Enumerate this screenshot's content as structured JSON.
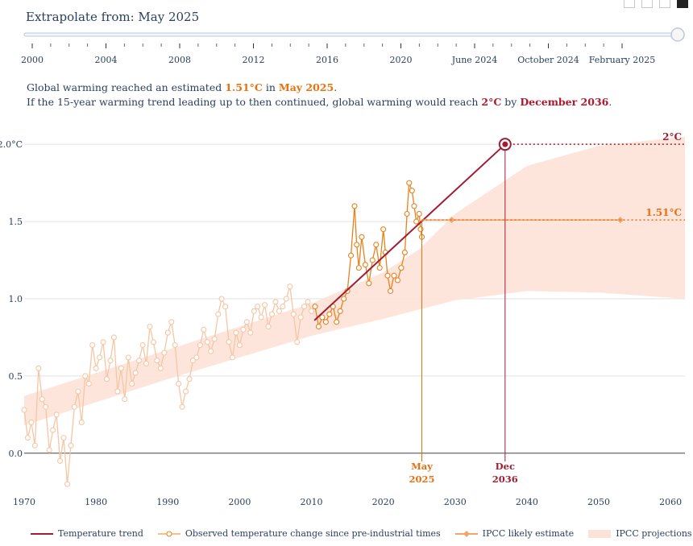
{
  "slider": {
    "label": "Extrapolate from: May 2025",
    "ticks": [
      "2000",
      "2004",
      "2008",
      "2012",
      "2016",
      "2020",
      "June 2024",
      "October 2024",
      "February 2025"
    ],
    "value_fraction": 1.0
  },
  "caption": {
    "line1_prefix": "Global warming reached an estimated ",
    "line1_temp": "1.51°C",
    "line1_mid": " in ",
    "line1_date": "May 2025",
    "line1_end": ".",
    "line2_prefix": "If the 15-year warming trend leading up to then continued, global warming would reach ",
    "line2_temp": "2°C",
    "line2_mid": " by ",
    "line2_date": "December 2036",
    "line2_end": "."
  },
  "legend": {
    "trend": "Temperature trend",
    "observed": "Observed temperature change since pre-industrial times",
    "ipcc_estimate": "IPCC likely estimate",
    "ipcc_proj": "IPCC projections"
  },
  "colors": {
    "trend": "#a11d33",
    "observed_old": "#f6c6a4",
    "observed_recent": "#e8821e",
    "ipcc_band": "#fde2d8",
    "ipcc_estimate": "#f2a56a",
    "text": "#2a3f5f"
  },
  "chart_data": {
    "type": "line",
    "xlim": [
      1970,
      2062
    ],
    "ylim": [
      -0.22,
      2.1
    ],
    "x_ticks": [
      "1970",
      "1980",
      "1990",
      "2000",
      "2010",
      "2020",
      "2030",
      "2040",
      "2050",
      "2060"
    ],
    "y_ticks": [
      "0.0",
      "0.5",
      "1.0",
      "1.5",
      "2.0°C"
    ],
    "annotations": {
      "two_label": "2°C",
      "current_label": "1.51°C",
      "may_label": [
        "May",
        "2025"
      ],
      "dec_label": [
        "Dec",
        "2036"
      ]
    },
    "trend": {
      "x0": 2010.4,
      "y0": 0.86,
      "x1": 2036.96,
      "y1": 2.0
    },
    "current": {
      "x": 2025.37,
      "y": 1.51
    },
    "target": {
      "x": 2036.96,
      "y": 2.0
    },
    "ipcc_estimate_line": {
      "x0": 2025.37,
      "x1": 2053,
      "y": 1.51
    },
    "ipcc_band": {
      "x": [
        1970,
        1980,
        1990,
        2000,
        2010,
        2020,
        2025,
        2030,
        2040,
        2050,
        2062
      ],
      "lower": [
        0.18,
        0.33,
        0.48,
        0.62,
        0.76,
        0.87,
        0.93,
        0.99,
        1.05,
        1.04,
        1.0
      ],
      "upper": [
        0.37,
        0.52,
        0.67,
        0.82,
        0.97,
        1.17,
        1.32,
        1.55,
        1.86,
        1.99,
        2.05
      ]
    },
    "observed_old": {
      "x": [
        1970.0,
        1970.5,
        1971.0,
        1971.5,
        1972.0,
        1972.5,
        1973.0,
        1973.5,
        1974.0,
        1974.5,
        1975.0,
        1975.5,
        1976.0,
        1976.5,
        1977.0,
        1977.5,
        1978.0,
        1978.5,
        1979.0,
        1979.5,
        1980.0,
        1980.5,
        1981.0,
        1981.5,
        1982.0,
        1982.5,
        1983.0,
        1983.5,
        1984.0,
        1984.5,
        1985.0,
        1985.5,
        1986.0,
        1986.5,
        1987.0,
        1987.5,
        1988.0,
        1988.5,
        1989.0,
        1989.5,
        1990.0,
        1990.5,
        1991.0,
        1991.5,
        1992.0,
        1992.5,
        1993.0,
        1993.5,
        1994.0,
        1994.5,
        1995.0,
        1995.5,
        1996.0,
        1996.5,
        1997.0,
        1997.5,
        1998.0,
        1998.5,
        1999.0,
        1999.5,
        2000.0,
        2000.5,
        2001.0,
        2001.5,
        2002.0,
        2002.5,
        2003.0,
        2003.5,
        2004.0,
        2004.5,
        2005.0,
        2005.5,
        2006.0,
        2006.5,
        2007.0,
        2007.5,
        2008.0,
        2008.5,
        2009.0,
        2009.5,
        2010.0
      ],
      "y": [
        0.28,
        0.1,
        0.2,
        0.05,
        0.55,
        0.35,
        0.3,
        0.02,
        0.15,
        0.25,
        -0.05,
        0.1,
        -0.2,
        0.05,
        0.3,
        0.4,
        0.2,
        0.5,
        0.45,
        0.7,
        0.55,
        0.62,
        0.72,
        0.48,
        0.6,
        0.75,
        0.4,
        0.55,
        0.35,
        0.62,
        0.45,
        0.52,
        0.6,
        0.7,
        0.58,
        0.82,
        0.72,
        0.6,
        0.55,
        0.65,
        0.78,
        0.85,
        0.7,
        0.45,
        0.3,
        0.4,
        0.48,
        0.6,
        0.62,
        0.7,
        0.8,
        0.72,
        0.66,
        0.74,
        0.9,
        1.0,
        0.95,
        0.72,
        0.62,
        0.78,
        0.7,
        0.8,
        0.85,
        0.78,
        0.92,
        0.95,
        0.88,
        0.96,
        0.82,
        0.9,
        0.98,
        0.92,
        0.95,
        1.0,
        1.08,
        0.9,
        0.72,
        0.88,
        0.95,
        0.98,
        0.92
      ]
    },
    "observed_recent": {
      "x": [
        2010.5,
        2011.0,
        2011.5,
        2012.0,
        2012.5,
        2013.0,
        2013.5,
        2014.0,
        2014.5,
        2015.0,
        2015.5,
        2016.0,
        2016.3,
        2016.6,
        2017.0,
        2017.5,
        2018.0,
        2018.5,
        2019.0,
        2019.5,
        2020.0,
        2020.3,
        2020.6,
        2021.0,
        2021.5,
        2022.0,
        2022.5,
        2023.0,
        2023.3,
        2023.6,
        2024.0,
        2024.3,
        2024.6,
        2025.0,
        2025.2,
        2025.37
      ],
      "y": [
        0.95,
        0.82,
        0.88,
        0.85,
        0.9,
        0.95,
        0.85,
        0.92,
        1.0,
        1.05,
        1.28,
        1.6,
        1.35,
        1.2,
        1.4,
        1.22,
        1.1,
        1.25,
        1.35,
        1.2,
        1.45,
        1.3,
        1.15,
        1.05,
        1.15,
        1.12,
        1.2,
        1.3,
        1.55,
        1.75,
        1.7,
        1.6,
        1.5,
        1.55,
        1.45,
        1.4
      ]
    }
  }
}
